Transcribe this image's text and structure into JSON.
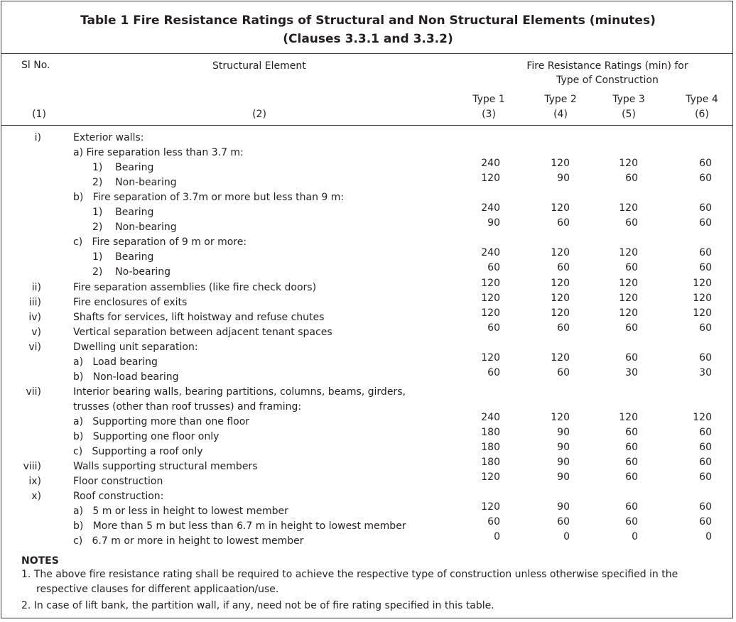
{
  "table": {
    "title_line1": "Table 1 Fire Resistance Ratings of Structural and Non Structural Elements (minutes)",
    "title_line2": "(Clauses 3.3.1 and 3.3.2)",
    "headers": {
      "sl_no": "Sl No.",
      "element": "Structural Element",
      "ratings_line1": "Fire Resistance Ratings (min) for",
      "ratings_line2": "Type of Construction",
      "type1": "Type 1",
      "type2": "Type 2",
      "type3": "Type 3",
      "type4": "Type 4",
      "col1": "(1)",
      "col2": "(2)",
      "col3": "(3)",
      "col4": "(4)",
      "col5": "(5)",
      "col6": "(6)"
    },
    "rows": [
      {
        "sl": "i)",
        "text": "Exterior walls:"
      },
      {
        "text": "a) Fire separation less than 3.7 m:"
      },
      {
        "text": "1)    Bearing",
        "v": [
          "240",
          "120",
          "120",
          "60"
        ]
      },
      {
        "text": "2)    Non-bearing",
        "v": [
          "120",
          "90",
          "60",
          "60"
        ]
      },
      {
        "text": "b)   Fire separation of 3.7m or more but less than 9 m:"
      },
      {
        "text": "1)    Bearing",
        "v": [
          "240",
          "120",
          "120",
          "60"
        ]
      },
      {
        "text": "2)    Non-bearing",
        "v": [
          "90",
          "60",
          "60",
          "60"
        ]
      },
      {
        "text": "c)   Fire separation of 9 m or more:"
      },
      {
        "text": "1)    Bearing",
        "v": [
          "240",
          "120",
          "120",
          "60"
        ]
      },
      {
        "text": "2)    No-bearing",
        "v": [
          "60",
          "60",
          "60",
          "60"
        ]
      },
      {
        "sl": "ii)",
        "text": "Fire separation assemblies (like fire check doors)",
        "v": [
          "120",
          "120",
          "120",
          "120"
        ]
      },
      {
        "sl": "iii)",
        "text": "Fire enclosures of exits",
        "v": [
          "120",
          "120",
          "120",
          "120"
        ]
      },
      {
        "sl": "iv)",
        "text": "Shafts for services, lift hoistway and refuse chutes",
        "v": [
          "120",
          "120",
          "120",
          "120"
        ]
      },
      {
        "sl": "v)",
        "text": "Vertical separation between adjacent tenant spaces",
        "v": [
          "60",
          "60",
          "60",
          "60"
        ]
      },
      {
        "sl": "vi)",
        "text": "Dwelling unit separation:"
      },
      {
        "text": "a)   Load bearing",
        "v": [
          "120",
          "120",
          "60",
          "60"
        ]
      },
      {
        "text": "b)   Non-load bearing",
        "v": [
          "60",
          "60",
          "30",
          "30"
        ]
      },
      {
        "sl": "vii)",
        "text": "Interior bearing walls, bearing partitions, columns, beams, girders,"
      },
      {
        "text": "trusses (other than roof trusses) and framing:"
      },
      {
        "text": "a)   Supporting more than one floor",
        "v": [
          "240",
          "120",
          "120",
          "120"
        ]
      },
      {
        "text": "b)   Supporting one floor only",
        "v": [
          "180",
          "90",
          "60",
          "60"
        ]
      },
      {
        "text": "c)   Supporting a roof only",
        "v": [
          "180",
          "90",
          "60",
          "60"
        ]
      },
      {
        "sl": "viii)",
        "text": "Walls supporting structural members",
        "v": [
          "180",
          "90",
          "60",
          "60"
        ]
      },
      {
        "sl": "ix)",
        "text": "Floor construction",
        "v": [
          "120",
          "90",
          "60",
          "60"
        ]
      },
      {
        "sl": "x)",
        "text": "Roof construction:"
      },
      {
        "text": "a)   5 m or less in height to lowest member",
        "v": [
          "120",
          "90",
          "60",
          "60"
        ]
      },
      {
        "text": "b)   More than 5 m but less than 6.7 m in height to lowest member",
        "v": [
          "60",
          "60",
          "60",
          "60"
        ]
      },
      {
        "text": "c)   6.7 m or more in height to lowest member",
        "v": [
          "0",
          "0",
          "0",
          "0"
        ]
      }
    ]
  },
  "notes": {
    "heading": "NOTES",
    "note1_line1": "1. The above fire resistance rating shall be required to achieve the respective type of construction unless otherwise specified in the",
    "note1_line2": "respective clauses for different applicaation/use.",
    "note2": "2. In case of lift bank, the partition wall, if any, need not be of fire rating specified in this table."
  }
}
